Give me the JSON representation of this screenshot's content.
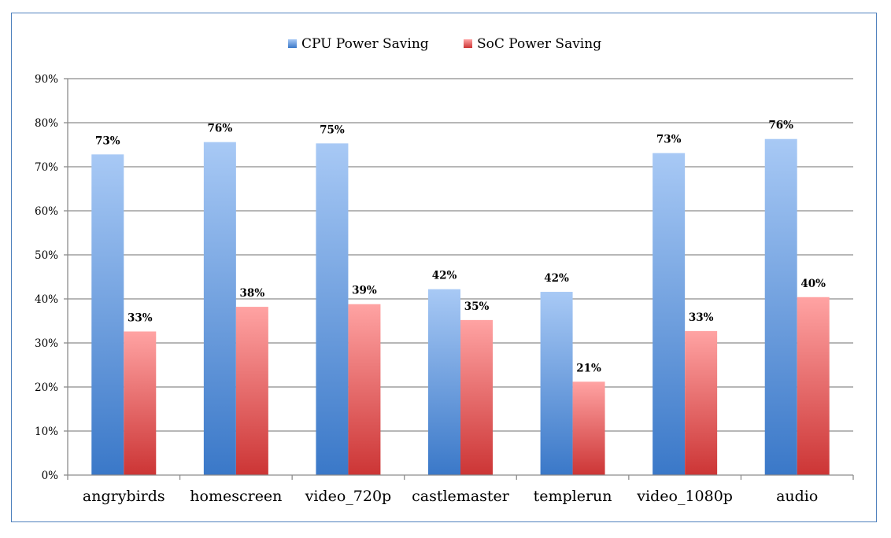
{
  "chart_data": {
    "type": "bar",
    "categories": [
      "angrybirds",
      "homescreen",
      "video_720p",
      "castlemaster",
      "templerun",
      "video_1080p",
      "audio"
    ],
    "series": [
      {
        "name": "CPU Power Saving",
        "values": [
          72.8,
          75.6,
          75.3,
          42.2,
          41.6,
          73.1,
          76.3
        ],
        "labels": [
          "73%",
          "76%",
          "75%",
          "42%",
          "42%",
          "73%",
          "76%"
        ],
        "color": "#4a86d4"
      },
      {
        "name": "SoC Power Saving",
        "values": [
          32.6,
          38.2,
          38.8,
          35.2,
          21.2,
          32.7,
          40.4
        ],
        "labels": [
          "33%",
          "38%",
          "39%",
          "35%",
          "21%",
          "33%",
          "40%"
        ],
        "color": "#d44848"
      }
    ],
    "ylim": [
      0,
      90
    ],
    "yticks": [
      0,
      10,
      20,
      30,
      40,
      50,
      60,
      70,
      80,
      90
    ],
    "ytick_labels": [
      "0%",
      "10%",
      "20%",
      "30%",
      "40%",
      "50%",
      "60%",
      "70%",
      "80%",
      "90%"
    ],
    "grid": true,
    "legend_position": "top-center",
    "title": "",
    "xlabel": "",
    "ylabel": ""
  }
}
